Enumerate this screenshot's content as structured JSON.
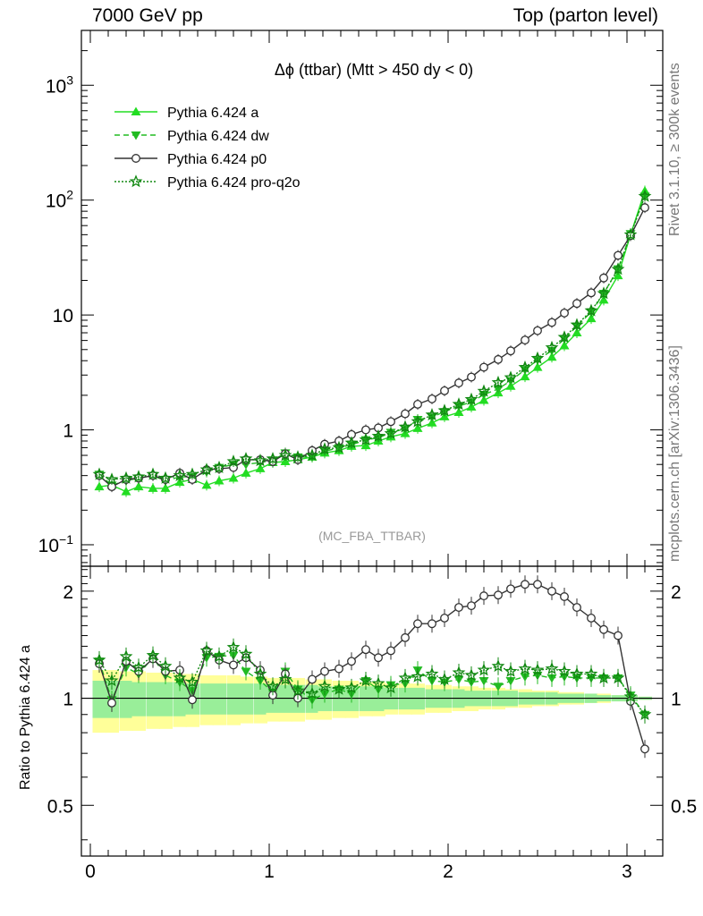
{
  "header": {
    "left": "7000 GeV pp",
    "right": "Top (parton level)"
  },
  "side_labels": {
    "rivet": "Rivet 3.1.10, ≥ 300k events",
    "mcplots": "mcplots.cern.ch [arXiv:1306.3436]"
  },
  "main_panel": {
    "title": "Δϕ (ttbar) (Mtt > 450 dy < 0)",
    "watermark": "(MC_FBA_TTBAR)",
    "y_ticks": [
      {
        "value": 0.1,
        "base": "10",
        "exp": "−1"
      },
      {
        "value": 1,
        "label": "1"
      },
      {
        "value": 10,
        "label": "10"
      },
      {
        "value": 100,
        "base": "10",
        "exp": "2"
      },
      {
        "value": 1000,
        "base": "10",
        "exp": "3"
      }
    ],
    "y_range": [
      0.065,
      3000
    ]
  },
  "ratio_panel": {
    "ylabel": "Ratio to Pythia 6.424 a",
    "y_ticks": [
      {
        "value": 0.5,
        "label": "0.5"
      },
      {
        "value": 1,
        "label": "1"
      },
      {
        "value": 2,
        "label": "2"
      }
    ],
    "y_range": [
      0.36,
      2.35
    ],
    "y_scale": "log"
  },
  "x_axis": {
    "range": [
      -0.05,
      3.2
    ],
    "ticks": [
      "0",
      "1",
      "2",
      "3"
    ]
  },
  "legend": [
    {
      "label": "Pythia 6.424 a",
      "color": "#22dd22",
      "line": "solid",
      "marker": "triangle-up"
    },
    {
      "label": "Pythia 6.424 dw",
      "color": "#22bb22",
      "line": "dashed",
      "marker": "triangle-down"
    },
    {
      "label": "Pythia 6.424 p0",
      "color": "#333333",
      "line": "solid",
      "marker": "circle-open"
    },
    {
      "label": "Pythia 6.424 pro-q2o",
      "color": "#118811",
      "line": "dotted",
      "marker": "star"
    }
  ],
  "chart_data": {
    "type": "line",
    "y_scale": "log",
    "x": [
      0.05,
      0.12,
      0.2,
      0.27,
      0.35,
      0.42,
      0.5,
      0.57,
      0.65,
      0.72,
      0.8,
      0.87,
      0.95,
      1.02,
      1.09,
      1.16,
      1.24,
      1.31,
      1.39,
      1.46,
      1.54,
      1.61,
      1.68,
      1.76,
      1.83,
      1.91,
      1.98,
      2.06,
      2.13,
      2.2,
      2.28,
      2.35,
      2.43,
      2.5,
      2.58,
      2.65,
      2.72,
      2.8,
      2.87,
      2.95,
      3.02,
      3.1
    ],
    "series": [
      {
        "name": "Pythia 6.424 a",
        "values": [
          0.32,
          0.33,
          0.29,
          0.32,
          0.31,
          0.31,
          0.35,
          0.37,
          0.33,
          0.36,
          0.38,
          0.42,
          0.46,
          0.52,
          0.53,
          0.55,
          0.58,
          0.63,
          0.66,
          0.72,
          0.73,
          0.8,
          0.87,
          0.93,
          1.03,
          1.15,
          1.3,
          1.42,
          1.58,
          1.81,
          2.1,
          2.4,
          2.9,
          3.5,
          4.3,
          5.4,
          7.0,
          9.3,
          13.5,
          22.0,
          50.0,
          120.0
        ]
      },
      {
        "name": "Pythia 6.424 dw",
        "values": [
          0.41,
          0.33,
          0.36,
          0.38,
          0.4,
          0.36,
          0.39,
          0.39,
          0.43,
          0.47,
          0.5,
          0.5,
          0.52,
          0.54,
          0.63,
          0.58,
          0.58,
          0.65,
          0.7,
          0.74,
          0.82,
          0.85,
          0.95,
          1.02,
          1.23,
          1.29,
          1.44,
          1.61,
          1.75,
          2.03,
          2.27,
          2.68,
          3.34,
          4.05,
          4.9,
          6.2,
          8.0,
          10.6,
          15.4,
          25.2,
          51.0,
          108.0
        ]
      },
      {
        "name": "Pythia 6.424 p0",
        "values": [
          0.4,
          0.32,
          0.37,
          0.38,
          0.4,
          0.37,
          0.42,
          0.37,
          0.45,
          0.46,
          0.47,
          0.55,
          0.55,
          0.53,
          0.62,
          0.55,
          0.66,
          0.75,
          0.8,
          0.91,
          1.0,
          1.04,
          1.18,
          1.38,
          1.67,
          1.86,
          2.19,
          2.56,
          2.88,
          3.51,
          4.1,
          4.87,
          6.05,
          7.3,
          8.6,
          10.4,
          12.6,
          15.6,
          21.0,
          33.0,
          49.0,
          86.0
        ]
      },
      {
        "name": "Pythia 6.424 pro-q2o",
        "values": [
          0.41,
          0.37,
          0.38,
          0.39,
          0.41,
          0.38,
          0.4,
          0.41,
          0.45,
          0.47,
          0.53,
          0.56,
          0.54,
          0.56,
          0.6,
          0.58,
          0.6,
          0.68,
          0.7,
          0.77,
          0.82,
          0.88,
          0.93,
          1.06,
          1.18,
          1.35,
          1.47,
          1.67,
          1.84,
          2.17,
          2.58,
          2.85,
          3.5,
          4.2,
          5.2,
          6.4,
          8.2,
          10.9,
          15.4,
          25.0,
          50.0,
          108.0
        ]
      }
    ],
    "ratio": [
      {
        "name": "Pythia 6.424 dw",
        "values": [
          1.27,
          0.99,
          1.22,
          1.17,
          1.3,
          1.16,
          1.11,
          1.05,
          1.3,
          1.31,
          1.32,
          1.19,
          1.12,
          1.04,
          1.19,
          1.06,
          0.99,
          1.03,
          1.06,
          1.03,
          1.12,
          1.06,
          1.09,
          1.1,
          1.2,
          1.12,
          1.11,
          1.13,
          1.11,
          1.12,
          1.08,
          1.12,
          1.15,
          1.16,
          1.14,
          1.15,
          1.14,
          1.14,
          1.14,
          1.14,
          1.02,
          0.9
        ]
      },
      {
        "name": "Pythia 6.424 p0",
        "values": [
          1.25,
          0.97,
          1.27,
          1.19,
          1.29,
          1.19,
          1.2,
          0.99,
          1.36,
          1.28,
          1.24,
          1.3,
          1.2,
          1.02,
          1.17,
          1.0,
          1.13,
          1.19,
          1.21,
          1.27,
          1.37,
          1.3,
          1.36,
          1.48,
          1.62,
          1.62,
          1.68,
          1.8,
          1.82,
          1.94,
          1.95,
          2.03,
          2.09,
          2.09,
          2.0,
          1.93,
          1.8,
          1.68,
          1.56,
          1.5,
          0.98,
          0.72
        ]
      },
      {
        "name": "Pythia 6.424 pro-q2o",
        "values": [
          1.28,
          1.12,
          1.31,
          1.22,
          1.32,
          1.23,
          1.14,
          1.11,
          1.36,
          1.31,
          1.39,
          1.33,
          1.17,
          1.08,
          1.13,
          1.05,
          1.03,
          1.08,
          1.06,
          1.07,
          1.12,
          1.1,
          1.07,
          1.14,
          1.15,
          1.17,
          1.13,
          1.18,
          1.16,
          1.2,
          1.23,
          1.19,
          1.21,
          1.2,
          1.21,
          1.19,
          1.17,
          1.17,
          1.14,
          1.14,
          1.01,
          0.9
        ]
      }
    ],
    "band_inner": [
      0.12,
      0.12,
      0.12,
      0.11,
      0.11,
      0.11,
      0.11,
      0.1,
      0.1,
      0.1,
      0.1,
      0.1,
      0.1,
      0.09,
      0.09,
      0.09,
      0.09,
      0.08,
      0.08,
      0.08,
      0.08,
      0.08,
      0.07,
      0.07,
      0.07,
      0.06,
      0.06,
      0.06,
      0.05,
      0.05,
      0.05,
      0.05,
      0.04,
      0.04,
      0.04,
      0.03,
      0.03,
      0.03,
      0.02,
      0.02,
      0.02,
      0.01
    ],
    "band_outer": [
      0.2,
      0.2,
      0.19,
      0.19,
      0.18,
      0.18,
      0.17,
      0.17,
      0.16,
      0.16,
      0.16,
      0.15,
      0.15,
      0.14,
      0.14,
      0.14,
      0.13,
      0.13,
      0.12,
      0.12,
      0.11,
      0.11,
      0.1,
      0.1,
      0.1,
      0.09,
      0.09,
      0.08,
      0.08,
      0.07,
      0.07,
      0.06,
      0.06,
      0.05,
      0.05,
      0.04,
      0.04,
      0.03,
      0.03,
      0.02,
      0.02,
      0.01
    ]
  }
}
